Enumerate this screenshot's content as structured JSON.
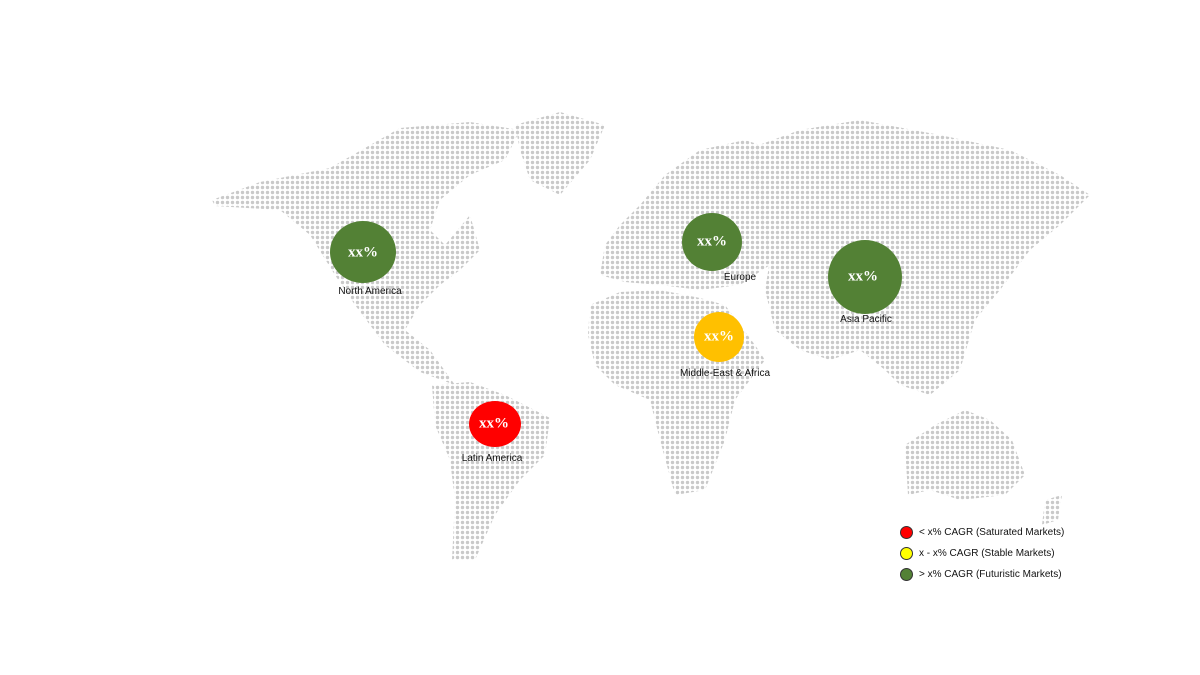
{
  "regions": [
    {
      "name": "North America",
      "value": "xx%",
      "color": "#538135"
    },
    {
      "name": "Europe",
      "value": "xx%",
      "color": "#538135"
    },
    {
      "name": "Asia Pacific",
      "value": "xx%",
      "color": "#538135"
    },
    {
      "name": "Middle-East & Africa",
      "value": "xx%",
      "color": "#ffc000"
    },
    {
      "name": "Latin America",
      "value": "xx%",
      "color": "#ff0000"
    }
  ],
  "legend": [
    {
      "label": "< x% CAGR (Saturated Markets)",
      "color": "#ff0000"
    },
    {
      "label": "x - x% CAGR (Stable Markets)",
      "color": "#ffff00"
    },
    {
      "label": "> x% CAGR (Futuristic Markets)",
      "color": "#538135"
    }
  ]
}
